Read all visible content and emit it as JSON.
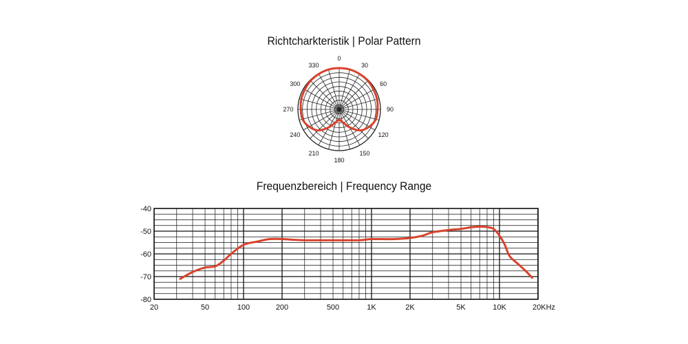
{
  "chart_data": [
    {
      "type": "polar",
      "title": "Richtcharkteristik | Polar Pattern",
      "angle_labels": [
        "0",
        "30",
        "60",
        "90",
        "120",
        "150",
        "180",
        "210",
        "240",
        "270",
        "300",
        "330"
      ],
      "series_color": "#d9412b",
      "series": [
        {
          "angles": [
            0,
            15,
            30,
            45,
            60,
            75,
            90,
            105,
            120,
            135,
            150,
            165,
            180,
            195,
            210,
            225,
            240,
            255,
            270,
            285,
            300,
            315,
            330,
            345
          ],
          "relative_response": [
            1.0,
            1.0,
            0.99,
            0.98,
            0.96,
            0.95,
            0.93,
            0.92,
            0.84,
            0.72,
            0.5,
            0.32,
            0.25,
            0.32,
            0.5,
            0.72,
            0.84,
            0.92,
            0.93,
            0.95,
            0.96,
            0.98,
            0.99,
            1.0
          ]
        }
      ]
    },
    {
      "type": "line",
      "title": "Frequenzbereich | Frequency Range",
      "x_scale": "log",
      "xlim": [
        20,
        20000
      ],
      "ylim": [
        -80,
        -40
      ],
      "x_ticks": [
        20,
        50,
        100,
        200,
        500,
        1000,
        2000,
        5000,
        10000,
        20000
      ],
      "x_tick_labels": [
        "20",
        "50",
        "100",
        "200",
        "500",
        "1K",
        "2K",
        "5K",
        "10K",
        "20KHz"
      ],
      "y_ticks": [
        -40,
        -50,
        -60,
        -70,
        -80
      ],
      "y_tick_labels": [
        "-40",
        "-50",
        "-60",
        "-70",
        "-80"
      ],
      "grid": true,
      "series_color": "#d9412b",
      "series": [
        {
          "x": [
            32,
            40,
            50,
            60,
            70,
            80,
            100,
            130,
            160,
            200,
            300,
            500,
            800,
            1000,
            1500,
            2000,
            2500,
            3000,
            4000,
            5000,
            6000,
            7000,
            8000,
            9000,
            10000,
            11000,
            12000,
            14000,
            16000,
            18000
          ],
          "y": [
            -71,
            -68,
            -66,
            -65.5,
            -63,
            -60,
            -56,
            -54.5,
            -53.5,
            -53.5,
            -54,
            -54,
            -54,
            -53.5,
            -53.5,
            -53,
            -52,
            -50.5,
            -49.5,
            -49,
            -48.3,
            -48,
            -48.2,
            -49,
            -52,
            -56,
            -61,
            -64.5,
            -67.5,
            -70.5
          ]
        }
      ]
    }
  ]
}
